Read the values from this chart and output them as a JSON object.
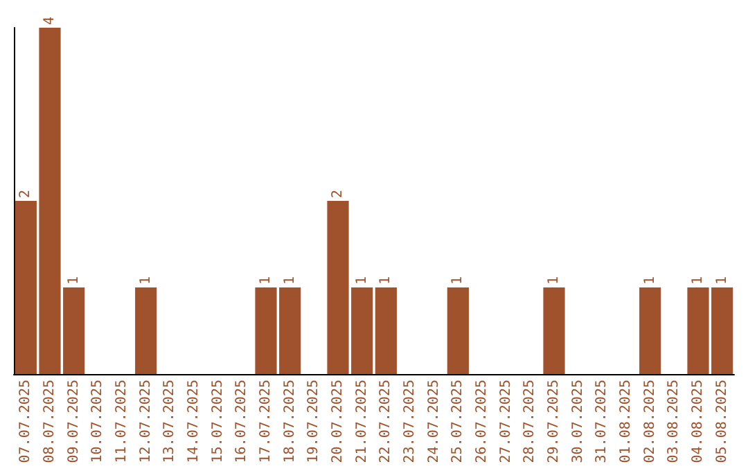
{
  "chart_data": {
    "type": "bar",
    "categories": [
      "07.07.2025",
      "08.07.2025",
      "09.07.2025",
      "10.07.2025",
      "11.07.2025",
      "12.07.2025",
      "13.07.2025",
      "14.07.2025",
      "15.07.2025",
      "16.07.2025",
      "17.07.2025",
      "18.07.2025",
      "19.07.2025",
      "20.07.2025",
      "21.07.2025",
      "22.07.2025",
      "23.07.2025",
      "24.07.2025",
      "25.07.2025",
      "26.07.2025",
      "27.07.2025",
      "28.07.2025",
      "29.07.2025",
      "30.07.2025",
      "31.07.2025",
      "01.08.2025",
      "02.08.2025",
      "03.08.2025",
      "04.08.2025",
      "05.08.2025"
    ],
    "values": [
      2,
      4,
      1,
      0,
      0,
      1,
      0,
      0,
      0,
      0,
      1,
      1,
      0,
      2,
      1,
      1,
      0,
      0,
      1,
      0,
      0,
      0,
      1,
      0,
      0,
      0,
      1,
      0,
      1,
      1
    ],
    "value_labels": [
      "2",
      "4",
      "1",
      null,
      null,
      "1",
      null,
      null,
      null,
      null,
      "1",
      "1",
      null,
      "2",
      "1",
      "1",
      null,
      null,
      "1",
      null,
      null,
      null,
      "1",
      null,
      null,
      null,
      "1",
      null,
      "1",
      "1"
    ],
    "color": "#a0522d",
    "grid": false,
    "tick_labels": "x"
  }
}
